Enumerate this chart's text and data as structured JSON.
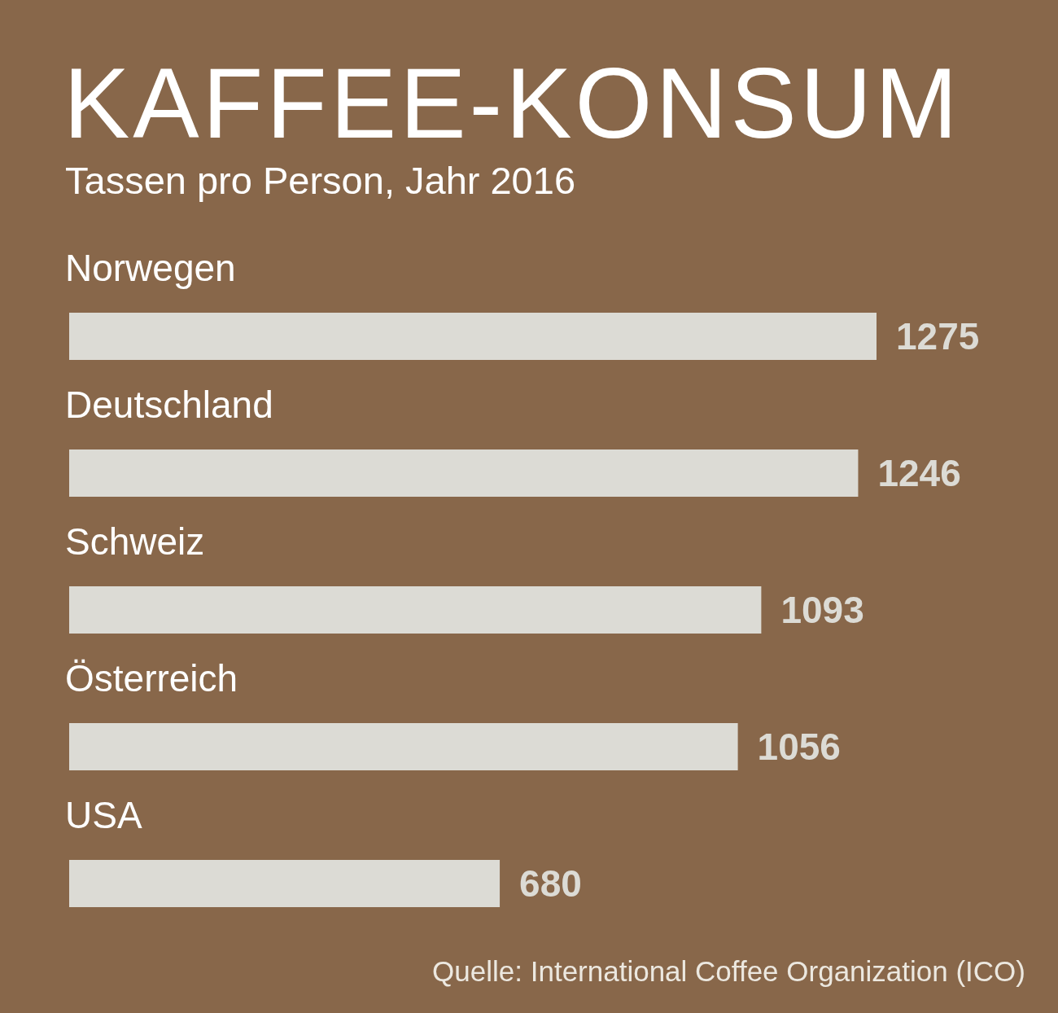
{
  "chart_data": {
    "type": "bar",
    "orientation": "horizontal",
    "title": "KAFFEE-KONSUM",
    "subtitle": "Tassen pro Person, Jahr 2016",
    "categories": [
      "Norwegen",
      "Deutschland",
      "Schweiz",
      "Österreich",
      "USA"
    ],
    "values": [
      1275,
      1246,
      1093,
      1056,
      680
    ],
    "color": "#dcdbd5",
    "data_labels": true,
    "annotations": [
      "Quelle: International Coffee Organization (ICO)"
    ]
  }
}
